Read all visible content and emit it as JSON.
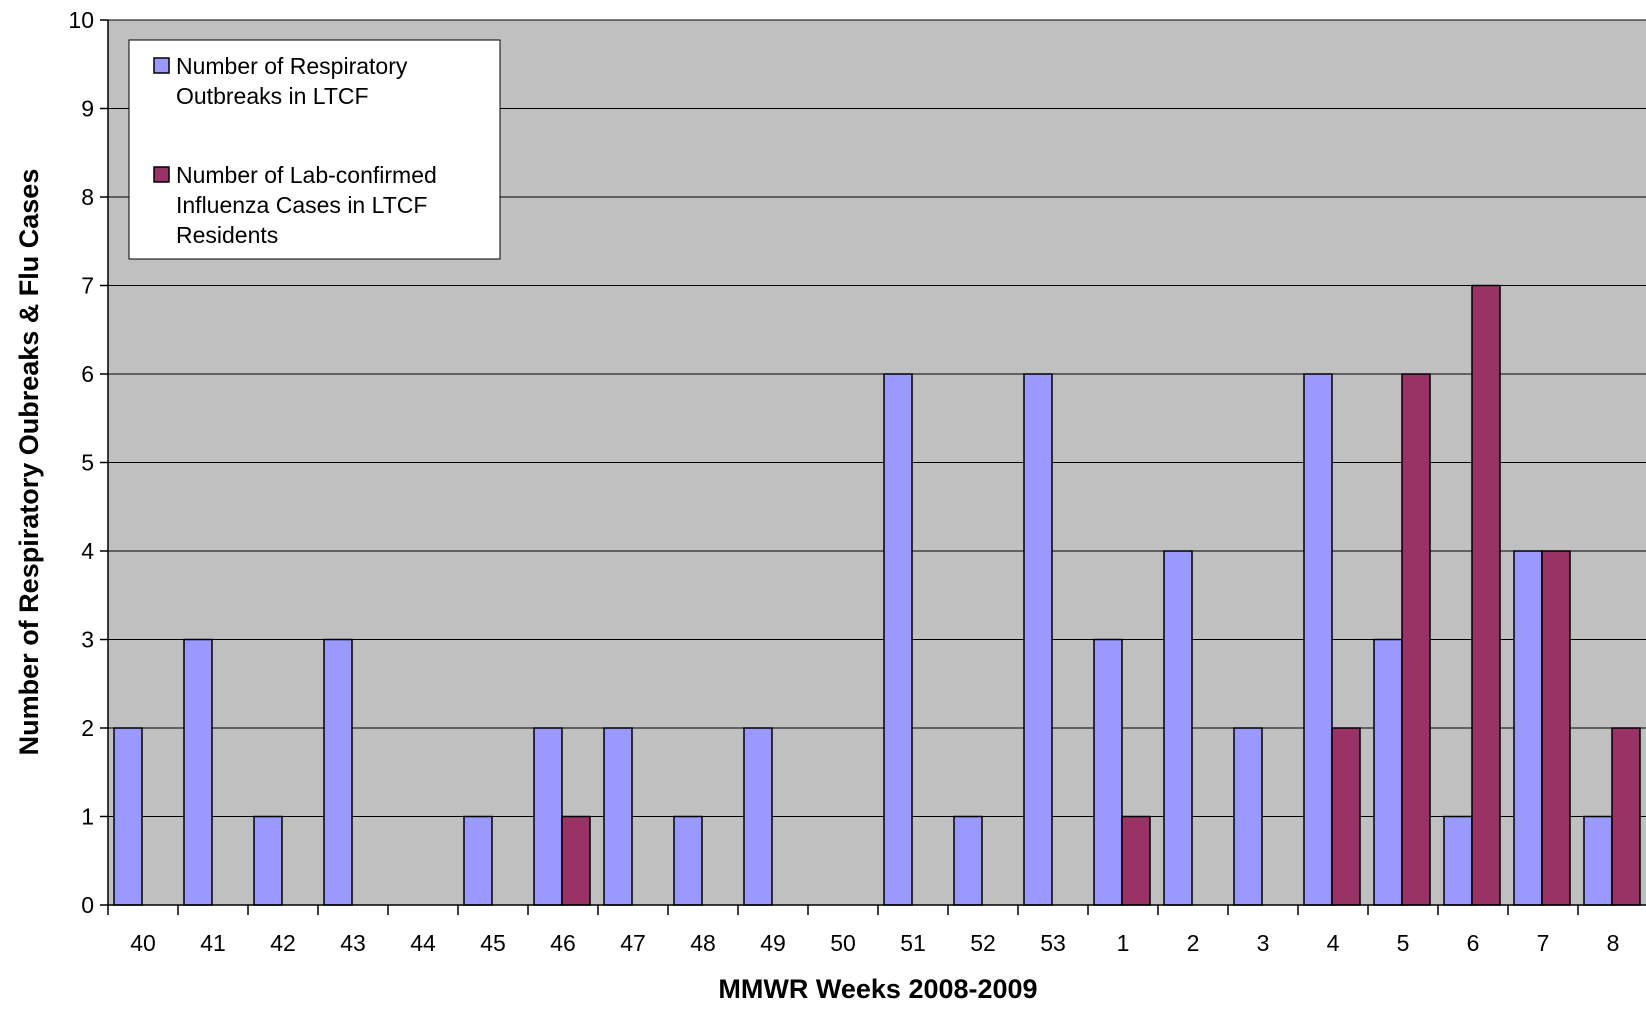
{
  "chart_data": {
    "type": "bar",
    "title": "",
    "xlabel": "MMWR Weeks 2008-2009",
    "ylabel": "Number of Respiratory Oubreaks & Flu Cases",
    "ylim": [
      0,
      10
    ],
    "yticks": [
      0,
      1,
      2,
      3,
      4,
      5,
      6,
      7,
      8,
      9,
      10
    ],
    "grid": true,
    "legend_position": "top-left",
    "categories": [
      "40",
      "41",
      "42",
      "43",
      "44",
      "45",
      "46",
      "47",
      "48",
      "49",
      "50",
      "51",
      "52",
      "53",
      "1",
      "2",
      "3",
      "4",
      "5",
      "6",
      "7",
      "8"
    ],
    "series": [
      {
        "name": "Number of Respiratory Outbreaks in LTCF",
        "legend_lines": [
          "Number of Respiratory",
          "Outbreaks in LTCF"
        ],
        "color": "#9999FF",
        "values": [
          2,
          3,
          1,
          3,
          0,
          1,
          2,
          2,
          1,
          2,
          0,
          6,
          1,
          6,
          3,
          4,
          2,
          6,
          3,
          1,
          4,
          1
        ]
      },
      {
        "name": "Number of Lab-confirmed Influenza Cases in LTCF Residents",
        "legend_lines": [
          "Number of Lab-confirmed",
          "Influenza Cases in LTCF",
          "Residents"
        ],
        "color": "#993366",
        "values": [
          0,
          0,
          0,
          0,
          0,
          0,
          1,
          0,
          0,
          0,
          0,
          0,
          0,
          0,
          1,
          0,
          0,
          2,
          6,
          7,
          4,
          2
        ]
      }
    ],
    "plot_background": "#C0C0C0"
  }
}
